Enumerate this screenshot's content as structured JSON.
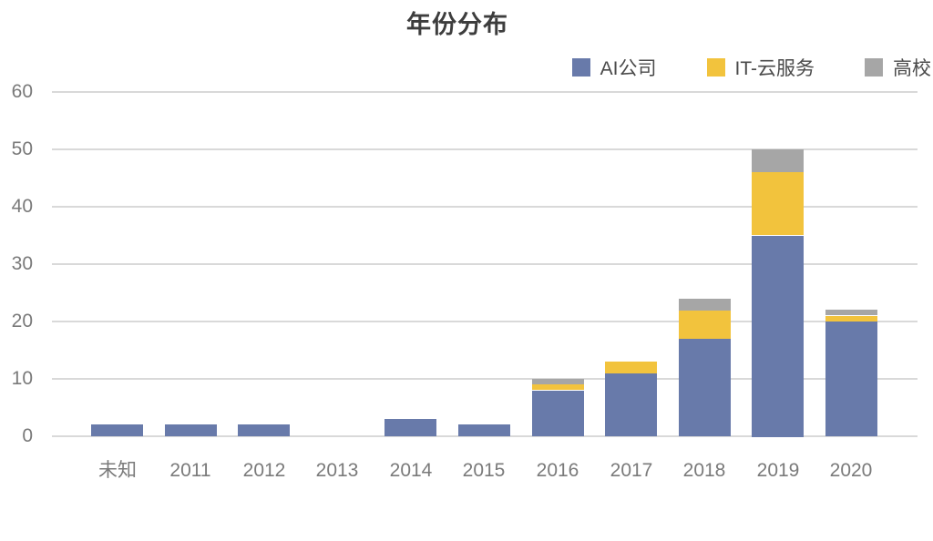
{
  "chart": {
    "title": "年份分布",
    "legend": [
      {
        "label": "AI公司",
        "color": "#687AAA"
      },
      {
        "label": "IT-云服务",
        "color": "#F2C33D"
      },
      {
        "label": "高校",
        "color": "#A6A6A6"
      }
    ]
  },
  "chart_data": {
    "type": "bar",
    "stacked": true,
    "title": "年份分布",
    "categories": [
      "未知",
      "2011",
      "2012",
      "2013",
      "2014",
      "2015",
      "2016",
      "2017",
      "2018",
      "2019",
      "2020"
    ],
    "series": [
      {
        "name": "AI公司",
        "color": "#687AAA",
        "values": [
          2,
          2,
          2,
          0,
          3,
          2,
          8,
          11,
          17,
          35,
          20
        ]
      },
      {
        "name": "IT-云服务",
        "color": "#F2C33D",
        "values": [
          0,
          0,
          0,
          0,
          0,
          0,
          1,
          2,
          5,
          11,
          1
        ]
      },
      {
        "name": "高校",
        "color": "#A6A6A6",
        "values": [
          0,
          0,
          0,
          0,
          0,
          0,
          1,
          0,
          2,
          4,
          1
        ]
      }
    ],
    "totals": [
      2,
      2,
      2,
      0,
      3,
      2,
      10,
      13,
      24,
      50,
      22
    ],
    "xlabel": "",
    "ylabel": "",
    "ylim": [
      0,
      60
    ],
    "yticks": [
      0,
      10,
      20,
      30,
      40,
      50,
      60
    ],
    "grid": true,
    "grid_color": "#d9d9d9",
    "legend_position": "top-right",
    "background": "#ffffff"
  }
}
